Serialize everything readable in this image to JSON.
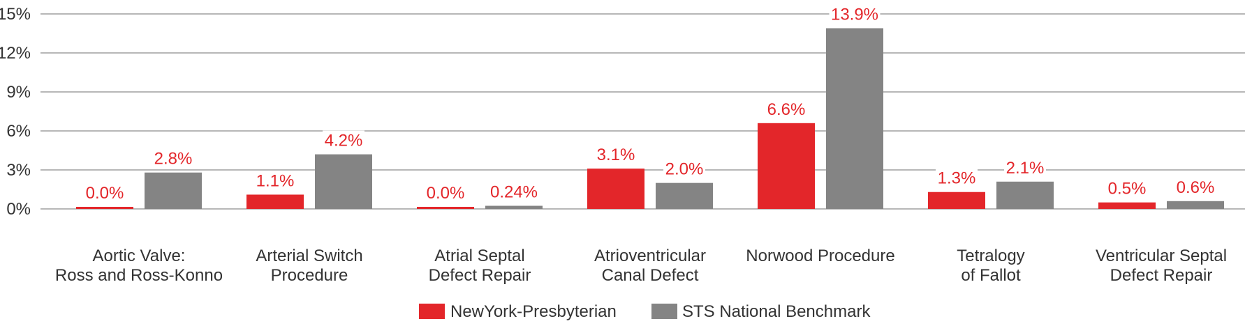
{
  "chart_data": {
    "type": "bar",
    "categories": [
      [
        "Aortic Valve:",
        "Ross and Ross-Konno"
      ],
      [
        "Arterial Switch",
        "Procedure"
      ],
      [
        "Atrial Septal",
        "Defect Repair"
      ],
      [
        "Atrioventricular",
        "Canal Defect"
      ],
      [
        "Norwood Procedure"
      ],
      [
        "Tetralogy",
        "of Fallot"
      ],
      [
        "Ventricular Septal",
        "Defect Repair"
      ]
    ],
    "series": [
      {
        "name": "NewYork-Presbyterian",
        "color": "#e3262a",
        "values": [
          0.0,
          1.1,
          0.0,
          3.1,
          6.6,
          1.3,
          0.5
        ],
        "labels": [
          "0.0%",
          "1.1%",
          "0.0%",
          "3.1%",
          "6.6%",
          "1.3%",
          "0.5%"
        ]
      },
      {
        "name": "STS National Benchmark",
        "color": "#848484",
        "values": [
          2.8,
          4.2,
          0.24,
          2.0,
          13.9,
          2.1,
          0.6
        ],
        "labels": [
          "2.8%",
          "4.2%",
          "0.24%",
          "2.0%",
          "13.9%",
          "2.1%",
          "0.6%"
        ]
      }
    ],
    "yticks": [
      "0%",
      "3%",
      "6%",
      "9%",
      "12%",
      "15%"
    ],
    "ytick_values": [
      0,
      3,
      6,
      9,
      12,
      15
    ],
    "ylim": [
      0,
      15
    ],
    "grid": true,
    "legend_position": "bottom",
    "label_color": "#e3262a"
  }
}
